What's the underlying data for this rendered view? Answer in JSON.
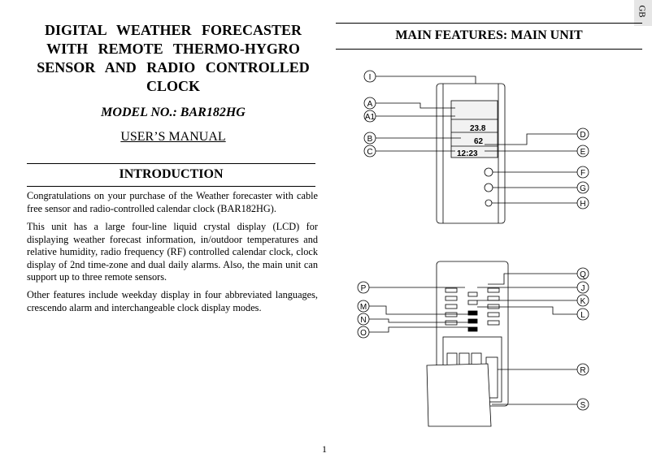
{
  "tab": "GB",
  "left": {
    "title_lines": [
      "DIGITAL  WEATHER  FORECASTER",
      "WITH  REMOTE  THERMO-HYGRO",
      "SENSOR  AND  RADIO  CONTROLLED",
      "CLOCK"
    ],
    "model": "MODEL NO.: BAR182HG",
    "manual": "USER’S MANUAL",
    "section": "INTRODUCTION",
    "paragraphs": [
      "Congratulations on your purchase of the Weather forecaster with cable free sensor and radio-controlled calendar clock (BAR182HG).",
      "This unit has a large four-line liquid crystal display (LCD) for displaying weather forecast information, in/outdoor temperatures and relative humidity, radio frequency (RF) controlled calendar clock, clock display of 2nd time-zone and dual daily alarms. Also, the main unit can support up to three remote sensors.",
      "Other features include weekday display in four abbreviated languages, crescendo alarm and interchangeable clock display modes."
    ]
  },
  "right": {
    "section": "MAIN FEATURES: MAIN UNIT",
    "front_labels": {
      "I": "I",
      "A": "A",
      "A1": "A1",
      "B": "B",
      "C": "C",
      "D": "D",
      "E": "E",
      "F": "F",
      "G": "G",
      "H": "H"
    },
    "back_labels": {
      "P": "P",
      "M": "M",
      "N": "N",
      "O": "O",
      "Q": "Q",
      "J": "J",
      "K": "K",
      "L": "L",
      "R": "R",
      "S": "S"
    },
    "lcd": {
      "temp": "23.8",
      "humidity": "62",
      "time": "12:23"
    }
  },
  "page_number": "1"
}
